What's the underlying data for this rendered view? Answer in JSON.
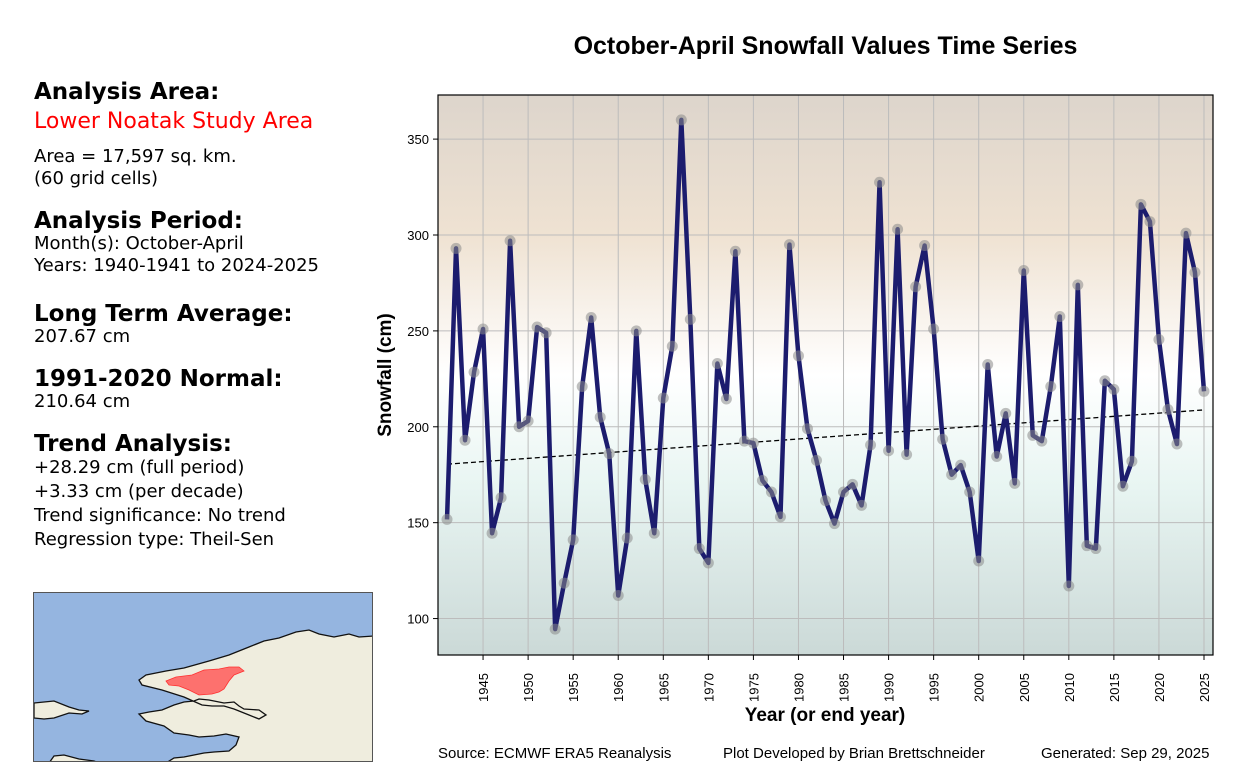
{
  "sidebar": {
    "analysis_area_heading": "Analysis Area:",
    "area_name": "Lower Noatak Study Area",
    "area_size": "Area = 17,597 sq. km.",
    "grid_cells": "(60 grid cells)",
    "analysis_period_heading": "Analysis Period:",
    "months": "Month(s): October-April",
    "years": "Years: 1940-1941 to 2024-2025",
    "lta_heading": "Long Term Average:",
    "lta_value": "207.67 cm",
    "normal_heading": "1991-2020 Normal:",
    "normal_value": "210.64 cm",
    "trend_heading": "Trend Analysis:",
    "trend_full": "+28.29 cm (full period)",
    "trend_decade": "+3.33 cm (per decade)",
    "trend_significance": "Trend significance: No trend",
    "regression_type": "Regression type: Theil-Sen",
    "area_name_color": "#ff0000"
  },
  "map": {
    "water_color": "#95b5e0",
    "land_color": "#efedde",
    "area_color": "#ff5a5a"
  },
  "footer": {
    "source": "Source: ECMWF ERA5 Reanalysis",
    "developer": "Plot Developed by Brian Brettschneider",
    "generated": "Generated: Sep 29, 2025"
  },
  "chart_data": {
    "type": "line",
    "title": "October-April Snowfall Values Time Series",
    "xlabel": "Year (or end year)",
    "ylabel": "Snowfall (cm)",
    "xlim": [
      1940,
      2026
    ],
    "ylim": [
      81,
      373
    ],
    "xticks": [
      1945,
      1950,
      1955,
      1960,
      1965,
      1970,
      1975,
      1980,
      1985,
      1990,
      1995,
      2000,
      2005,
      2010,
      2015,
      2020,
      2025
    ],
    "yticks": [
      100,
      150,
      200,
      250,
      300,
      350
    ],
    "grid": true,
    "line_color": "#1c1c6e",
    "marker_color": "#8a8a8a",
    "trend_line": {
      "style": "dashed",
      "color": "#000000",
      "start": [
        1941,
        180.5
      ],
      "end": [
        2025,
        208.8
      ]
    },
    "series": [
      {
        "name": "October-April snowfall",
        "x": [
          1941,
          1942,
          1943,
          1944,
          1945,
          1946,
          1947,
          1948,
          1949,
          1950,
          1951,
          1952,
          1953,
          1954,
          1955,
          1956,
          1957,
          1958,
          1959,
          1960,
          1961,
          1962,
          1963,
          1964,
          1965,
          1966,
          1967,
          1968,
          1969,
          1970,
          1971,
          1972,
          1973,
          1974,
          1975,
          1976,
          1977,
          1978,
          1979,
          1980,
          1981,
          1982,
          1983,
          1984,
          1985,
          1986,
          1987,
          1988,
          1989,
          1990,
          1991,
          1992,
          1993,
          1994,
          1995,
          1996,
          1997,
          1998,
          1999,
          2000,
          2001,
          2002,
          2003,
          2004,
          2005,
          2006,
          2007,
          2008,
          2009,
          2010,
          2011,
          2012,
          2013,
          2014,
          2015,
          2016,
          2017,
          2018,
          2019,
          2020,
          2021,
          2022,
          2023,
          2024,
          2025
        ],
        "values": [
          151.7,
          293,
          193,
          228.5,
          251,
          144.5,
          163,
          297,
          200,
          203,
          252,
          249,
          94.5,
          118.5,
          141,
          221,
          257,
          205,
          186,
          112,
          142,
          250,
          172.5,
          144.5,
          215,
          242,
          360,
          256,
          136.5,
          129,
          233,
          214.5,
          291.5,
          192.5,
          191.5,
          172,
          166,
          153,
          295,
          237,
          199,
          182.5,
          161.5,
          149.5,
          166,
          170,
          159,
          190.5,
          327.5,
          187.5,
          303,
          185.5,
          273,
          294.5,
          251,
          193.5,
          175,
          180,
          166,
          130,
          232.5,
          184.5,
          207,
          170.5,
          281.5,
          195.5,
          192.5,
          221,
          257.5,
          117,
          274,
          138,
          136.5,
          224,
          219.5,
          169,
          182,
          316,
          307,
          245.5,
          209,
          191,
          301,
          280.5,
          218.5
        ]
      }
    ]
  }
}
